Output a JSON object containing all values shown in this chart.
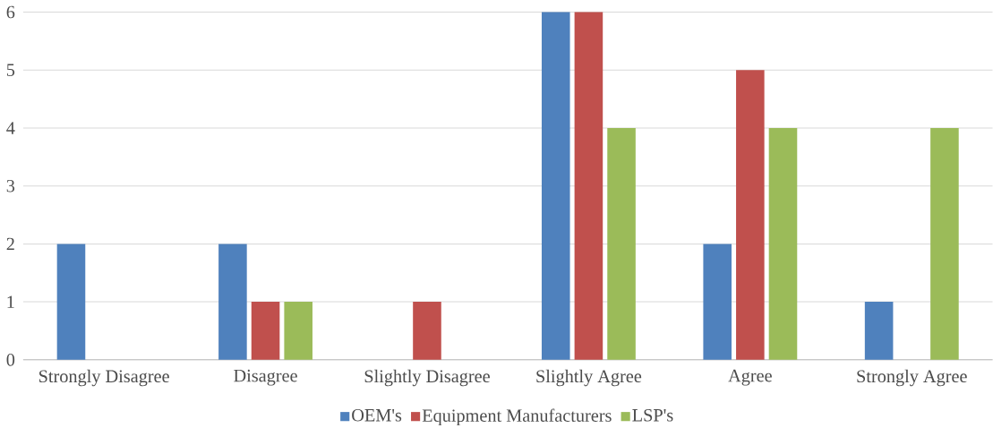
{
  "chart_data": {
    "type": "bar",
    "categories": [
      "Strongly Disagree",
      "Disagree",
      "Slightly Disagree",
      "Slightly Agree",
      "Agree",
      "Strongly Agree"
    ],
    "series": [
      {
        "name": "OEM's",
        "color": "#4f81bd",
        "values": [
          2,
          2,
          0,
          6,
          2,
          1
        ]
      },
      {
        "name": "Equipment Manufacturers",
        "color": "#c0504d",
        "values": [
          0,
          1,
          1,
          6,
          5,
          0
        ]
      },
      {
        "name": "LSP's",
        "color": "#9bbb59",
        "values": [
          0,
          1,
          0,
          4,
          4,
          4
        ]
      }
    ],
    "ylim": [
      0,
      6
    ],
    "yticks": [
      0,
      1,
      2,
      3,
      4,
      5,
      6
    ],
    "grid": "y",
    "legend": "bottom"
  }
}
